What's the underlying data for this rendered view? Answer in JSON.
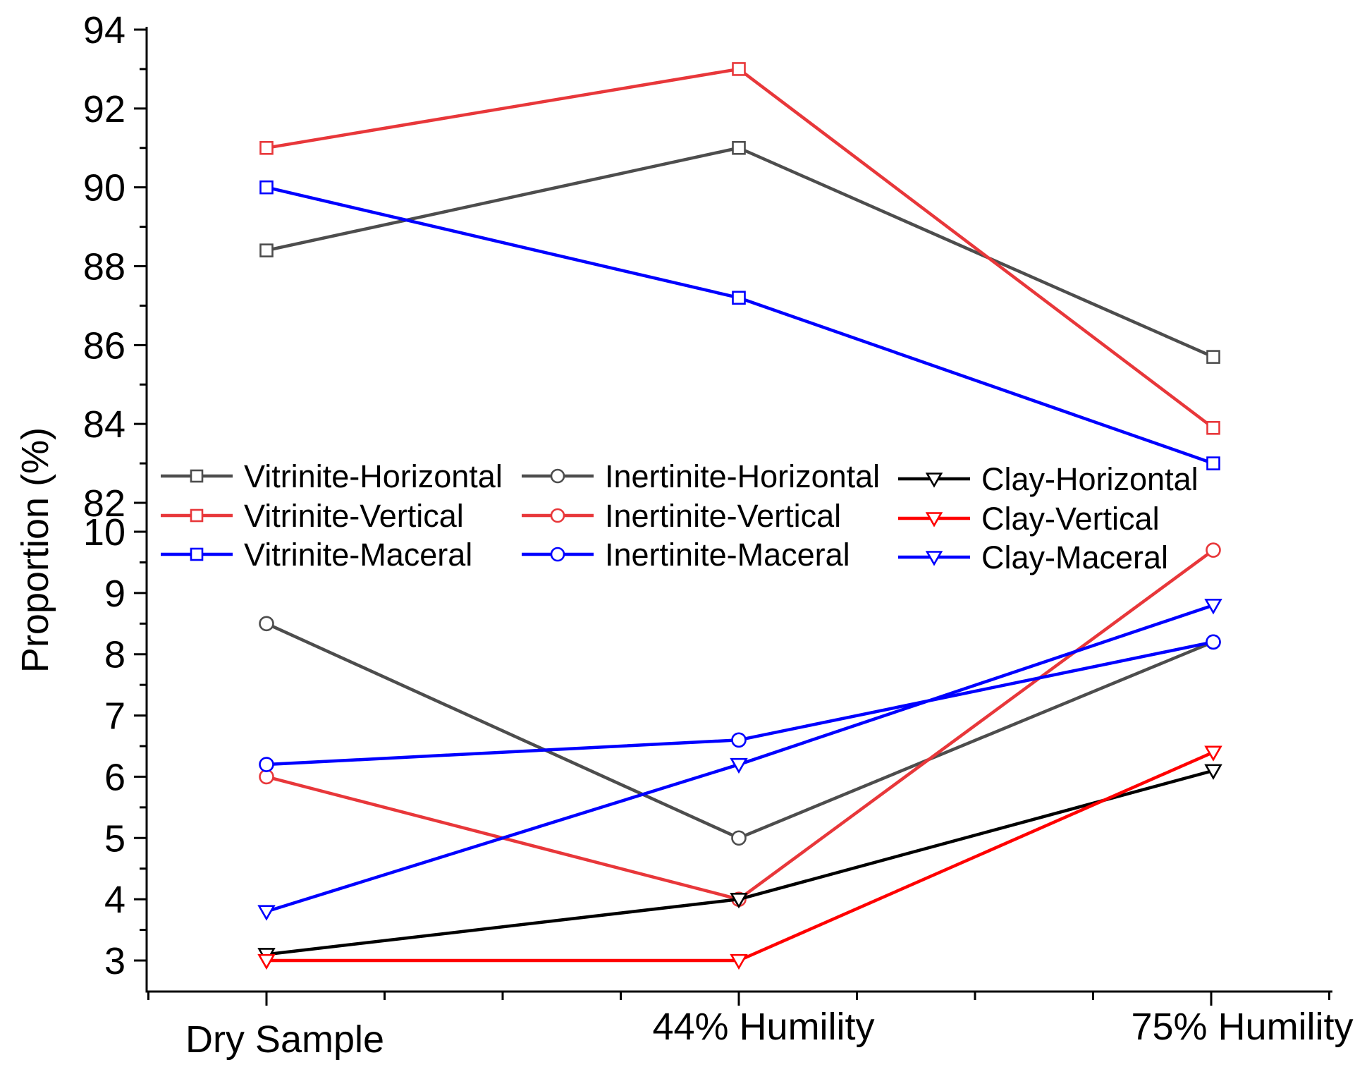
{
  "chart_data": {
    "type": "line",
    "ylabel": "Proportion (%)",
    "xlabel": "",
    "categories": [
      "Dry Sample",
      "44% Humility",
      "75% Humility"
    ],
    "y_axis_upper": {
      "ylim": [
        81.6,
        94
      ],
      "ticks": [
        82,
        84,
        86,
        88,
        90,
        92,
        94
      ]
    },
    "y_axis_lower": {
      "ylim": [
        2.5,
        10.4
      ],
      "ticks": [
        3,
        4,
        5,
        6,
        7,
        8,
        9,
        10
      ]
    },
    "series": [
      {
        "name": "Vitrinite-Horizontal",
        "values": [
          88.4,
          91,
          85.7
        ],
        "color": "#4d4d4d",
        "marker": "square",
        "panel": "upper"
      },
      {
        "name": "Vitrinite-Vertical",
        "values": [
          91,
          93,
          83.9
        ],
        "color": "#e8373a",
        "marker": "square",
        "panel": "upper"
      },
      {
        "name": "Vitrinite-Maceral",
        "values": [
          90,
          87.2,
          83
        ],
        "color": "#0000ff",
        "marker": "square",
        "panel": "upper"
      },
      {
        "name": "Inertinite-Horizontal",
        "values": [
          8.5,
          5,
          8.2
        ],
        "color": "#4d4d4d",
        "marker": "circle",
        "panel": "lower"
      },
      {
        "name": "Inertinite-Vertical",
        "values": [
          6,
          4,
          9.7
        ],
        "color": "#e8373a",
        "marker": "circle",
        "panel": "lower"
      },
      {
        "name": "Inertinite-Maceral",
        "values": [
          6.2,
          6.6,
          8.2
        ],
        "color": "#0000ff",
        "marker": "circle",
        "panel": "lower"
      },
      {
        "name": "Clay-Horizontal",
        "values": [
          3.1,
          4,
          6.1
        ],
        "color": "#000000",
        "marker": "triangle-down",
        "panel": "lower"
      },
      {
        "name": "Clay-Vertical",
        "values": [
          3,
          3,
          6.4
        ],
        "color": "#ff0000",
        "marker": "triangle-down",
        "panel": "lower"
      },
      {
        "name": "Clay-Maceral",
        "values": [
          3.8,
          6.2,
          8.8
        ],
        "color": "#0000ff",
        "marker": "triangle-down",
        "panel": "lower"
      }
    ],
    "legend_position": "middle",
    "grid": false
  }
}
